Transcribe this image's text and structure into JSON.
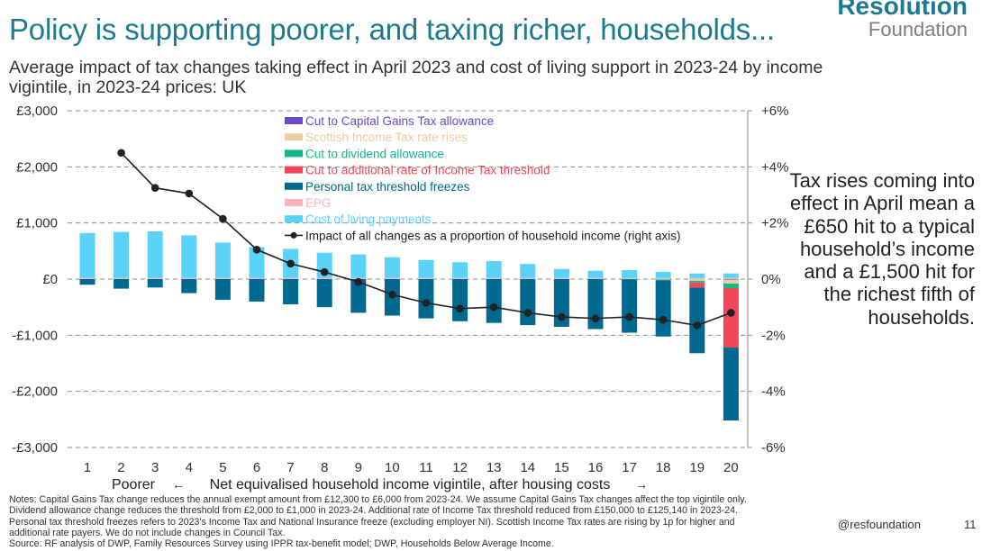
{
  "title": "Policy is supporting poorer, and taxing richer, households...",
  "subtitle": "Average impact of tax changes taking effect in April 2023 and cost of living support in 2023-24 by income vigintile, in 2023-24 prices: UK",
  "logo": {
    "line1": "Resolution",
    "line2": "Foundation"
  },
  "callout": "Tax rises coming into effect in April mean a £650 hit to a typical household’s income and a £1,500 hit for the richest fifth of households.",
  "notes": [
    "Notes: Capital Gains Tax change reduces the annual exempt amount from £12,300 to £6,000 from 2023-24. We assume Capital Gains Tax changes affect the top vigintile only.",
    "Dividend allowance change reduces the threshold from £2,000 to £1,000 in 2023-24. Additional rate of Income Tax threshold reduced from £150,000 to £125,140 in 2023-24.",
    "Personal tax threshold freezes refers to 2023’s Income Tax and National Insurance freeze (excluding employer NI). Scottish Income Tax rates are rising by 1p for higher and",
    "additional rate payers. We do not include changes in Council Tax.",
    "Source: RF analysis of DWP, Family Resources Survey using IPPR tax-benefit model; DWP, Households Below Average Income."
  ],
  "handle": "@resfoundation",
  "page_number": "11",
  "chart_data": {
    "type": "bar",
    "stacked": true,
    "categories": [
      "1",
      "2",
      "3",
      "4",
      "5",
      "6",
      "7",
      "8",
      "9",
      "10",
      "11",
      "12",
      "13",
      "14",
      "15",
      "16",
      "17",
      "18",
      "19",
      "20"
    ],
    "xlabel": "Net equivalised household income vigintile, after housing costs",
    "xlabel_left": "Poorer",
    "xlabel_arrow_left": "←",
    "xlabel_arrow_right": "→",
    "ylim": [
      -3000,
      3000
    ],
    "yticks": [
      "£3,000",
      "£2,000",
      "£1,000",
      "£0",
      "-£1,000",
      "-£2,000",
      "-£3,000"
    ],
    "y2lim": [
      -6,
      6
    ],
    "y2ticks": [
      "+6%",
      "+4%",
      "+2%",
      "0%",
      "-2%",
      "-4%",
      "-6%"
    ],
    "grid": "dashed-horizontal",
    "legend_position": "top-center",
    "series": [
      {
        "name": "Cut to Capital Gains Tax allowance",
        "color": "#6a4bc4",
        "values": [
          0,
          0,
          0,
          0,
          0,
          0,
          0,
          0,
          0,
          0,
          0,
          0,
          0,
          0,
          0,
          0,
          0,
          0,
          0,
          -10
        ]
      },
      {
        "name": "Scottish Income Tax rate rises",
        "color": "#e6cfa3",
        "values": [
          0,
          0,
          0,
          0,
          0,
          0,
          0,
          0,
          0,
          0,
          0,
          0,
          0,
          0,
          0,
          0,
          0,
          -8,
          -30,
          -70
        ]
      },
      {
        "name": "Cut to dividend allowance",
        "color": "#10b98a",
        "values": [
          0,
          0,
          0,
          0,
          0,
          0,
          0,
          0,
          0,
          0,
          0,
          0,
          0,
          0,
          0,
          0,
          -5,
          -15,
          -30,
          -80
        ]
      },
      {
        "name": "Cut to additional rate of Income Tax threshold",
        "color": "#f2475a",
        "values": [
          0,
          0,
          0,
          0,
          0,
          0,
          0,
          0,
          0,
          0,
          0,
          0,
          0,
          0,
          0,
          0,
          0,
          0,
          -90,
          -1060
        ]
      },
      {
        "name": "Personal tax threshold freezes",
        "color": "#00698f",
        "values": [
          -100,
          -170,
          -150,
          -250,
          -370,
          -400,
          -450,
          -500,
          -600,
          -650,
          -700,
          -750,
          -780,
          -820,
          -850,
          -890,
          -950,
          -1000,
          -1170,
          -1300
        ]
      },
      {
        "name": "EPG",
        "color": "#f9b4bd",
        "values": [
          20,
          20,
          20,
          20,
          20,
          20,
          20,
          20,
          20,
          20,
          20,
          20,
          20,
          20,
          20,
          20,
          20,
          20,
          20,
          20
        ]
      },
      {
        "name": "Cost of living payments",
        "color": "#5ad3f8",
        "values": [
          800,
          820,
          830,
          760,
          630,
          550,
          520,
          450,
          420,
          370,
          320,
          280,
          300,
          250,
          160,
          130,
          140,
          110,
          80,
          80
        ]
      }
    ],
    "line_series": {
      "name": "Impact of all changes as a proportion of household income (right axis)",
      "axis": "right",
      "color": "#222222",
      "values": [
        null,
        4.5,
        3.25,
        3.05,
        2.15,
        1.05,
        0.55,
        0.25,
        -0.1,
        -0.55,
        -0.85,
        -1.05,
        -1.0,
        -1.2,
        -1.35,
        -1.4,
        -1.35,
        -1.45,
        -1.65,
        -1.2
      ]
    }
  }
}
